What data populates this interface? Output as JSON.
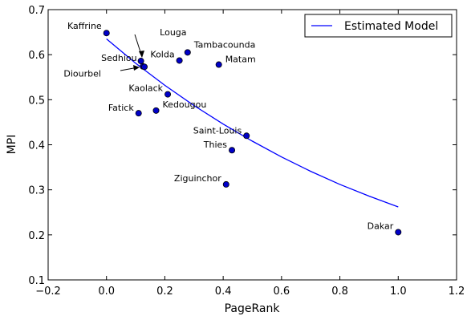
{
  "chart_data": {
    "type": "scatter",
    "xlabel": "PageRank",
    "ylabel": "MPI",
    "xlim": [
      -0.2,
      1.2
    ],
    "ylim": [
      0.1,
      0.7
    ],
    "xticks": [
      "−0.2",
      "0.0",
      "0.2",
      "0.4",
      "0.6",
      "0.8",
      "1.0",
      "1.2"
    ],
    "yticks": [
      "0.1",
      "0.2",
      "0.3",
      "0.4",
      "0.5",
      "0.6",
      "0.7"
    ],
    "grid": false,
    "legend_position": "top-right",
    "series": [
      {
        "points": [
          {
            "label": "Kaffrine",
            "x": 0.0,
            "y": 0.648
          },
          {
            "label": "Louga",
            "x": 0.125,
            "y": 0.574
          },
          {
            "label": "Sedhiou",
            "x": 0.118,
            "y": 0.586
          },
          {
            "label": "Diourbel",
            "x": 0.13,
            "y": 0.573
          },
          {
            "label": "Kolda",
            "x": 0.25,
            "y": 0.587
          },
          {
            "label": "Tambacounda",
            "x": 0.278,
            "y": 0.605
          },
          {
            "label": "Matam",
            "x": 0.385,
            "y": 0.578
          },
          {
            "label": "Kaolack",
            "x": 0.21,
            "y": 0.512
          },
          {
            "label": "Kedougou",
            "x": 0.17,
            "y": 0.476
          },
          {
            "label": "Fatick",
            "x": 0.11,
            "y": 0.47
          },
          {
            "label": "Saint-Louis",
            "x": 0.48,
            "y": 0.42
          },
          {
            "label": "Thies",
            "x": 0.43,
            "y": 0.388
          },
          {
            "label": "Ziguinchor",
            "x": 0.41,
            "y": 0.312
          },
          {
            "label": "Dakar",
            "x": 1.0,
            "y": 0.206
          }
        ],
        "color": "#0000c8"
      },
      {
        "name": "Estimated Model",
        "type": "line",
        "color": "#0000ff",
        "x": [
          0.0,
          0.1,
          0.2,
          0.3,
          0.4,
          0.5,
          0.6,
          0.7,
          0.8,
          0.9,
          1.0
        ],
        "y": [
          0.635,
          0.581,
          0.532,
          0.487,
          0.446,
          0.408,
          0.373,
          0.341,
          0.312,
          0.286,
          0.262
        ]
      }
    ]
  }
}
